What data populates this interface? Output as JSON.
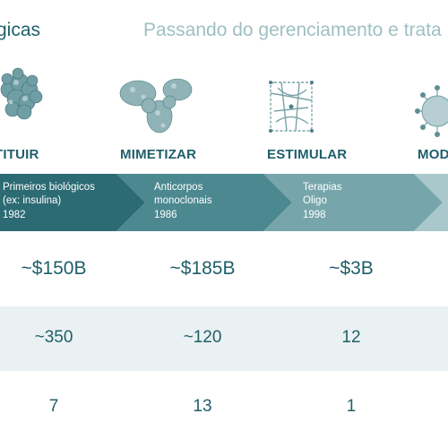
{
  "header": {
    "left_text": "gicas",
    "right_text": "Passando do gerenciamento e trata"
  },
  "stages": [
    {
      "label": "TITUIR",
      "line1": "Primeiros biológicos",
      "line2": "(ex: insulina)",
      "year": "1982",
      "value1": "~$150B",
      "value2": "~350",
      "value3": "7",
      "color": "#2d6b74"
    },
    {
      "label": "MIMETIZAR",
      "line1": "Anticorpos",
      "line2": "monoclonais",
      "year": "1986",
      "value1": "~$185B",
      "value2": "~120",
      "value3": "13",
      "color": "#4c8890"
    },
    {
      "label": "ESTIMULAR",
      "line1": "Terapias",
      "line2": "Oligo",
      "year": "1998",
      "value1": "~$3B",
      "value2": "12",
      "value3": "1",
      "color": "#76a6ab"
    },
    {
      "label": "MOD",
      "line1": "",
      "line2": "",
      "year": "",
      "value1": "",
      "value2": "",
      "value3": "",
      "color": "#a9c8cb"
    }
  ],
  "colors": {
    "primary_text": "#1f5f6a",
    "light_text": "#9fc0c3",
    "row_band": "#eaf1f2"
  },
  "icons": [
    "protein-molecule-icon",
    "antibody-icon",
    "oligo-strand-icon",
    "virus-particle-icon"
  ]
}
